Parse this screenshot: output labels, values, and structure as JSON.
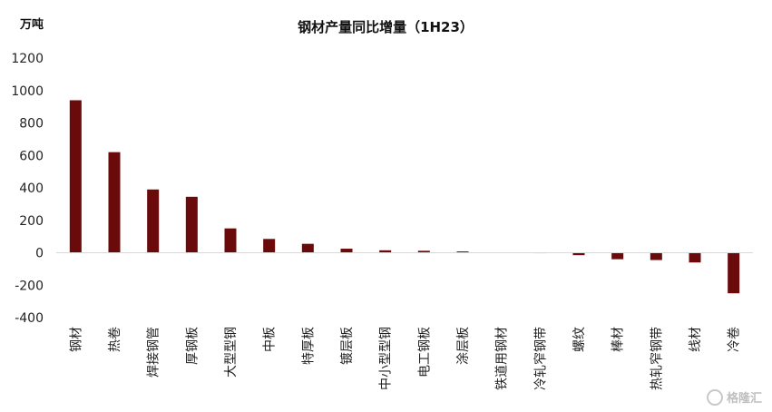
{
  "chart_data": {
    "type": "bar",
    "title": "钢材产量同比增量（1H23）",
    "unit_label": "万吨",
    "categories": [
      "钢材",
      "热卷",
      "焊接钢管",
      "厚钢板",
      "大型型钢",
      "中板",
      "特厚板",
      "镀层板",
      "中小型型钢",
      "电工钢板",
      "涂层板",
      "铁道用钢材",
      "冷轧窄钢带",
      "螺纹",
      "棒材",
      "热轧窄钢带",
      "线材",
      "冷卷"
    ],
    "values": [
      940,
      620,
      390,
      345,
      150,
      85,
      55,
      25,
      15,
      12,
      8,
      -2,
      -3,
      -15,
      -40,
      -45,
      -60,
      -250
    ],
    "ylim": [
      -400,
      1200
    ],
    "yticks": [
      "1200",
      "1000",
      "800",
      "600",
      "400",
      "200",
      "0",
      "-200",
      "-400"
    ],
    "ytick_values": [
      1200,
      1000,
      800,
      600,
      400,
      200,
      0,
      -200,
      -400
    ],
    "grid": false,
    "bar_color": "#6b0a0a"
  },
  "watermark": "格隆汇"
}
